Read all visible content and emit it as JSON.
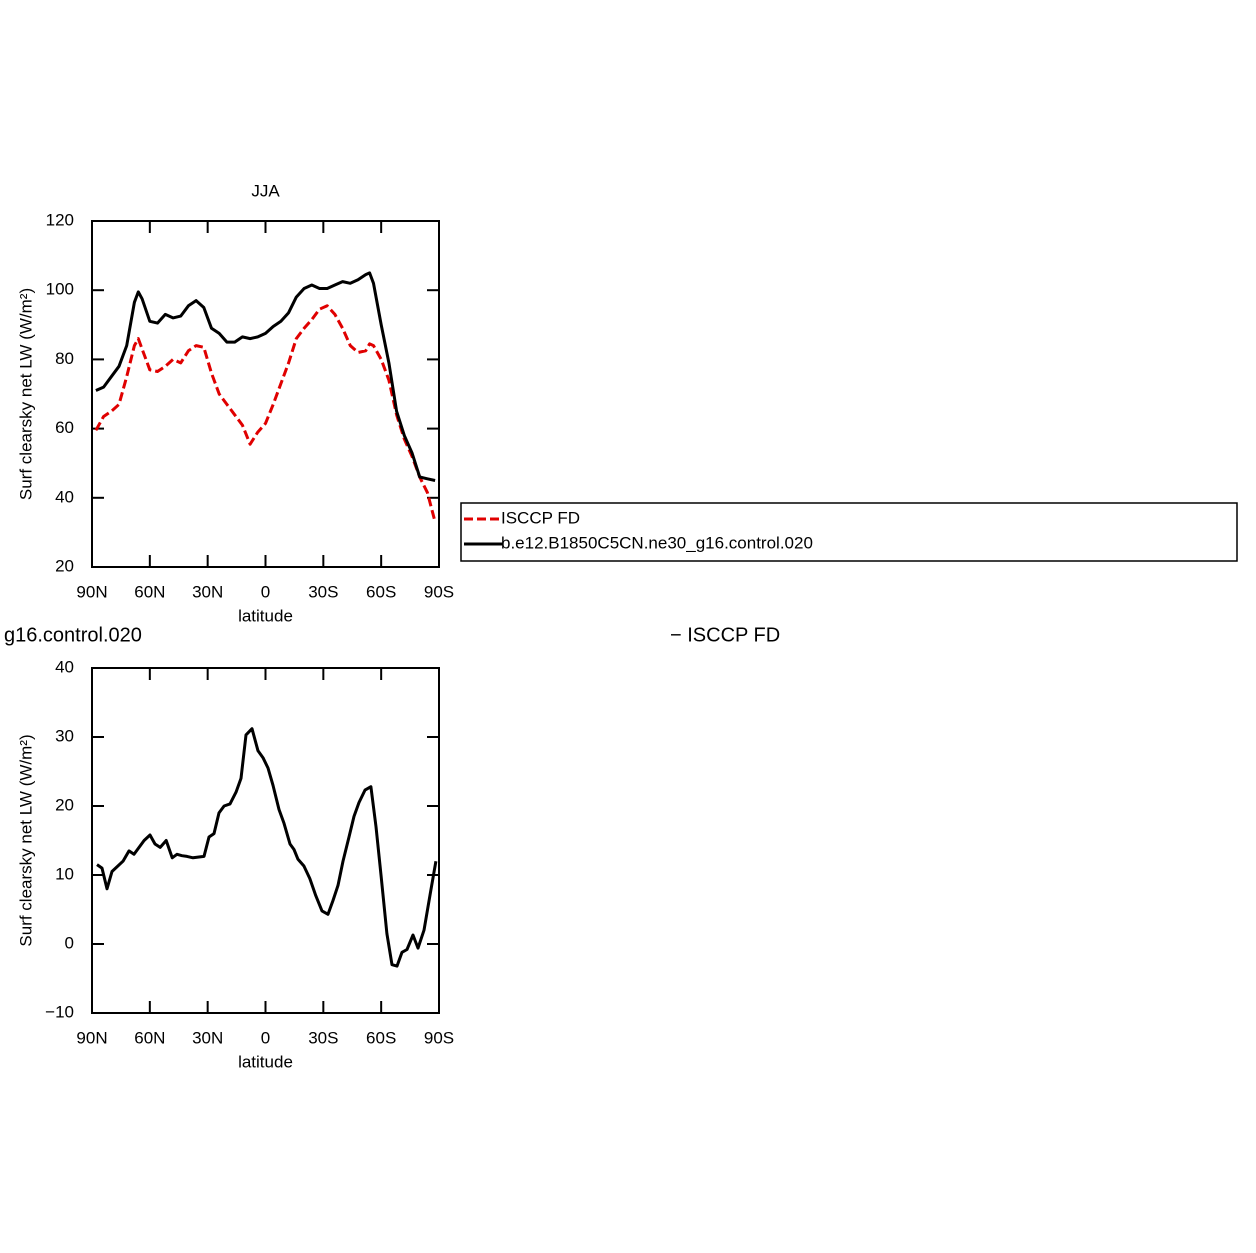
{
  "chart_data": [
    {
      "type": "line",
      "title": "JJA",
      "xlabel": "latitude",
      "ylabel": "Surf clearsky net LW (W/m²)",
      "xlim": [
        90,
        -90
      ],
      "xticks": [
        {
          "value": 90,
          "label": "90N"
        },
        {
          "value": 60,
          "label": "60N"
        },
        {
          "value": 30,
          "label": "30N"
        },
        0,
        {
          "value": -30,
          "label": "30S"
        },
        {
          "value": -60,
          "label": "60S"
        },
        {
          "value": -90,
          "label": "90S"
        }
      ],
      "ylim": [
        20,
        120
      ],
      "yticks": [
        20,
        40,
        60,
        80,
        100,
        120
      ],
      "legend": "right",
      "x": [
        88,
        84,
        80,
        76,
        72,
        68,
        66,
        64,
        60,
        56,
        52,
        48,
        44,
        40,
        36,
        32,
        28,
        24,
        20,
        16,
        12,
        8,
        4,
        0,
        -4,
        -8,
        -12,
        -16,
        -20,
        -24,
        -28,
        -32,
        -36,
        -40,
        -44,
        -48,
        -52,
        -54,
        -56,
        -60,
        -64,
        -68,
        -72,
        -76,
        -80,
        -84,
        -88
      ],
      "series": [
        {
          "name": "ISCCP FD",
          "color": "#e00000",
          "line_style": "dashed",
          "values": [
            59.5,
            63.5,
            65,
            67,
            75,
            84,
            86,
            83,
            77,
            76.5,
            78,
            80,
            79,
            82.5,
            84,
            83.5,
            76,
            70,
            67,
            64,
            61,
            55.5,
            59,
            61.5,
            67,
            73,
            79,
            86,
            89,
            91.5,
            94.5,
            95.5,
            93,
            89,
            84,
            82,
            82.5,
            84.5,
            84,
            80,
            74,
            64,
            57,
            52,
            46,
            41.5,
            33
          ]
        },
        {
          "name": "b.e12.B1850C5CN.ne30_g16.control.020",
          "color": "#000000",
          "line_style": "solid",
          "values": [
            71,
            72,
            75,
            78,
            84,
            96.5,
            99.5,
            97.5,
            91,
            90.5,
            93,
            92,
            92.5,
            95.5,
            97,
            95,
            89,
            87.5,
            85,
            85,
            86.5,
            86,
            86.5,
            87.5,
            89.5,
            91,
            93.5,
            98,
            100.5,
            101.5,
            100.5,
            100.5,
            101.5,
            102.5,
            102,
            103,
            104.5,
            105,
            102,
            90,
            79,
            65,
            58,
            53,
            46,
            45.5,
            45
          ]
        }
      ]
    },
    {
      "type": "line",
      "title_left": "g16.control.020",
      "title_right": "− ISCCP FD",
      "xlabel": "latitude",
      "ylabel": "Surf clearsky net LW (W/m²)",
      "xlim": [
        90,
        -90
      ],
      "xticks": [
        {
          "value": 90,
          "label": "90N"
        },
        {
          "value": 60,
          "label": "60N"
        },
        {
          "value": 30,
          "label": "30N"
        },
        0,
        {
          "value": -30,
          "label": "30S"
        },
        {
          "value": -60,
          "label": "60S"
        },
        {
          "value": -90,
          "label": "90S"
        }
      ],
      "ylim": [
        -10,
        40
      ],
      "yticks": [
        {
          "value": -10,
          "label": "−10"
        },
        0,
        10,
        20,
        30,
        40
      ],
      "x": [
        87.4,
        84.8,
        82.2,
        79.6,
        73.9,
        70.8,
        68.2,
        63.0,
        59.9,
        57.3,
        54.6,
        51.5,
        48.4,
        45.9,
        43.3,
        40.7,
        37.6,
        31.9,
        29.3,
        26.7,
        24.1,
        21.5,
        18.4,
        15.3,
        12.7,
        10.1,
        7.0,
        3.9,
        1.3,
        -1.3,
        -3.9,
        -7.0,
        -9.6,
        -12.7,
        -14.8,
        -16.8,
        -19.9,
        -23.0,
        -26.1,
        -29.3,
        -32.4,
        -35.0,
        -37.6,
        -40.2,
        -43.3,
        -45.9,
        -48.5,
        -51.6,
        -54.7,
        -57.3,
        -59.9,
        -63.0,
        -65.6,
        -68.2,
        -70.8,
        -73.4,
        -76.5,
        -79.1,
        -82.2,
        -85.3,
        -88.4
      ],
      "series": [
        {
          "color": "#000000",
          "line_style": "solid",
          "values": [
            11.5,
            11,
            8,
            10.5,
            12,
            13.5,
            13,
            15,
            15.8,
            14.5,
            14,
            15,
            12.5,
            13,
            12.8,
            12.7,
            12.5,
            12.7,
            15.5,
            16,
            19,
            20,
            20.3,
            22,
            24,
            30.3,
            31.2,
            28,
            27,
            25.5,
            23,
            19.5,
            17.5,
            14.5,
            13.7,
            12.3,
            11.3,
            9.5,
            7,
            4.8,
            4.3,
            6.3,
            8.5,
            12,
            15.5,
            18.5,
            20.5,
            22.3,
            22.8,
            17,
            10,
            1.5,
            -3,
            -3.2,
            -1.2,
            -0.8,
            1.3,
            -0.6,
            2,
            7,
            12
          ]
        }
      ]
    }
  ]
}
